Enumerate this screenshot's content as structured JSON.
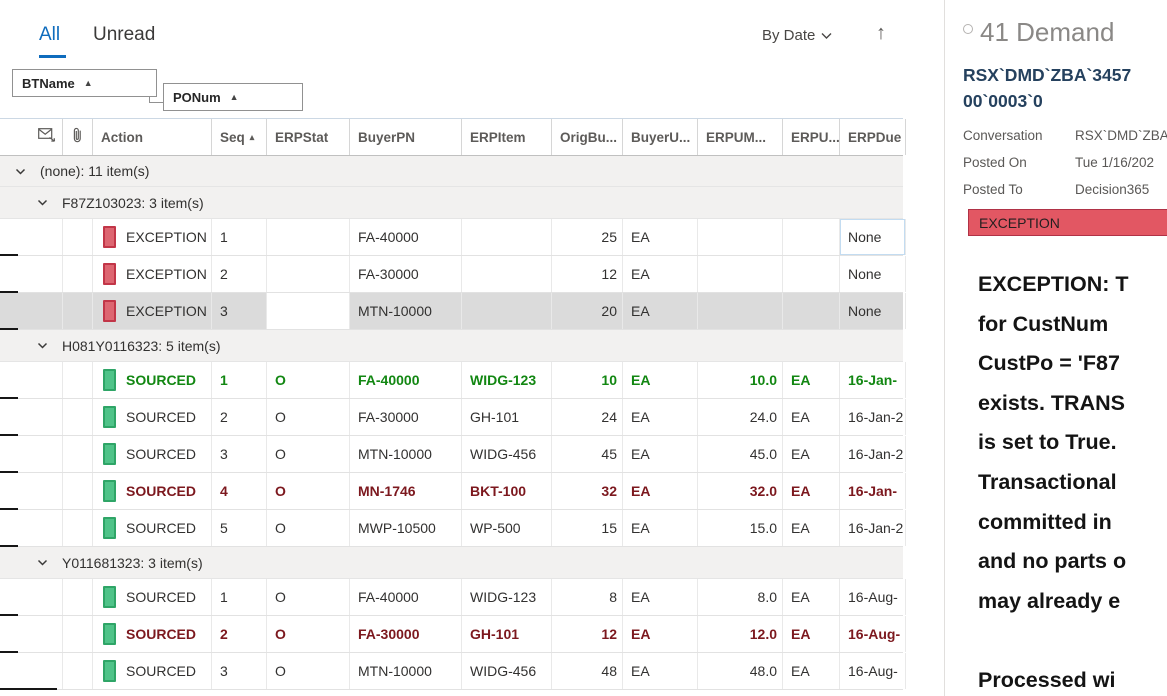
{
  "tabs": {
    "all": "All",
    "unread": "Unread"
  },
  "toolbar": {
    "sort_label": "By Date"
  },
  "group_by": {
    "first": "BTName",
    "second": "PONum"
  },
  "columns": [
    {
      "key": "mail",
      "label": "",
      "icon": "mail-read-icon"
    },
    {
      "key": "clip",
      "label": "",
      "icon": "paperclip-icon"
    },
    {
      "key": "action",
      "label": "Action"
    },
    {
      "key": "seq",
      "label": "Seq",
      "sort": "asc"
    },
    {
      "key": "erpstat",
      "label": "ERPStat"
    },
    {
      "key": "buyerpn",
      "label": "BuyerPN"
    },
    {
      "key": "erpitem",
      "label": "ERPItem"
    },
    {
      "key": "origbu",
      "label": "OrigBu..."
    },
    {
      "key": "buyeru",
      "label": "BuyerU..."
    },
    {
      "key": "erpum",
      "label": "ERPUM..."
    },
    {
      "key": "erpu",
      "label": "ERPU..."
    },
    {
      "key": "erpdue",
      "label": "ERPDue"
    }
  ],
  "groups": [
    {
      "label": "(none): 11 item(s)",
      "level": 0,
      "rows": []
    },
    {
      "label": "F87Z103023: 3 item(s)",
      "level": 1,
      "rows": [
        {
          "badge": "red",
          "style": "normal",
          "focus_cell": "erpdue",
          "values": {
            "action": "EXCEPTION",
            "seq": "1",
            "erpstat": "",
            "buyerpn": "FA-40000",
            "erpitem": "",
            "origbu": "25",
            "buyeru": "EA",
            "erpum": "",
            "erpu": "",
            "erpdue": "None"
          }
        },
        {
          "badge": "red",
          "style": "normal",
          "values": {
            "action": "EXCEPTION",
            "seq": "2",
            "erpstat": "",
            "buyerpn": "FA-30000",
            "erpitem": "",
            "origbu": "12",
            "buyeru": "EA",
            "erpum": "",
            "erpu": "",
            "erpdue": "None"
          }
        },
        {
          "badge": "red",
          "style": "normal",
          "selected": true,
          "white_cell": "erpstat",
          "values": {
            "action": "EXCEPTION",
            "seq": "3",
            "erpstat": "",
            "buyerpn": "MTN-10000",
            "erpitem": "",
            "origbu": "20",
            "buyeru": "EA",
            "erpum": "",
            "erpu": "",
            "erpdue": "None"
          }
        }
      ]
    },
    {
      "label": "H081Y0116323: 5 item(s)",
      "level": 1,
      "rows": [
        {
          "badge": "green",
          "style": "unread-green",
          "values": {
            "action": "SOURCED",
            "seq": "1",
            "erpstat": "O",
            "buyerpn": "FA-40000",
            "erpitem": "WIDG-123",
            "origbu": "10",
            "buyeru": "EA",
            "erpum": "10.0",
            "erpu": "EA",
            "erpdue": "16-Jan-"
          }
        },
        {
          "badge": "green",
          "style": "normal",
          "values": {
            "action": "SOURCED",
            "seq": "2",
            "erpstat": "O",
            "buyerpn": "FA-30000",
            "erpitem": "GH-101",
            "origbu": "24",
            "buyeru": "EA",
            "erpum": "24.0",
            "erpu": "EA",
            "erpdue": "16-Jan-2"
          }
        },
        {
          "badge": "green",
          "style": "normal",
          "values": {
            "action": "SOURCED",
            "seq": "3",
            "erpstat": "O",
            "buyerpn": "MTN-10000",
            "erpitem": "WIDG-456",
            "origbu": "45",
            "buyeru": "EA",
            "erpum": "45.0",
            "erpu": "EA",
            "erpdue": "16-Jan-2"
          }
        },
        {
          "badge": "green",
          "style": "unread-maroon",
          "values": {
            "action": "SOURCED",
            "seq": "4",
            "erpstat": "O",
            "buyerpn": "MN-1746",
            "erpitem": "BKT-100",
            "origbu": "32",
            "buyeru": "EA",
            "erpum": "32.0",
            "erpu": "EA",
            "erpdue": "16-Jan-"
          }
        },
        {
          "badge": "green",
          "style": "normal",
          "values": {
            "action": "SOURCED",
            "seq": "5",
            "erpstat": "O",
            "buyerpn": "MWP-10500",
            "erpitem": "WP-500",
            "origbu": "15",
            "buyeru": "EA",
            "erpum": "15.0",
            "erpu": "EA",
            "erpdue": "16-Jan-2"
          }
        }
      ]
    },
    {
      "label": "Y011681323: 3 item(s)",
      "level": 1,
      "rows": [
        {
          "badge": "green",
          "style": "normal",
          "values": {
            "action": "SOURCED",
            "seq": "1",
            "erpstat": "O",
            "buyerpn": "FA-40000",
            "erpitem": "WIDG-123",
            "origbu": "8",
            "buyeru": "EA",
            "erpum": "8.0",
            "erpu": "EA",
            "erpdue": "16-Aug-"
          }
        },
        {
          "badge": "green",
          "style": "unread-maroon",
          "values": {
            "action": "SOURCED",
            "seq": "2",
            "erpstat": "O",
            "buyerpn": "FA-30000",
            "erpitem": "GH-101",
            "origbu": "12",
            "buyeru": "EA",
            "erpum": "12.0",
            "erpu": "EA",
            "erpdue": "16-Aug-"
          }
        },
        {
          "badge": "green",
          "style": "normal",
          "wide_tick": true,
          "values": {
            "action": "SOURCED",
            "seq": "3",
            "erpstat": "O",
            "buyerpn": "MTN-10000",
            "erpitem": "WIDG-456",
            "origbu": "48",
            "buyeru": "EA",
            "erpum": "48.0",
            "erpu": "EA",
            "erpdue": "16-Aug-"
          }
        }
      ]
    }
  ],
  "detail": {
    "type_label": "41 Demand",
    "subject_line1": "RSX`DMD`ZBA`3457",
    "subject_line2": "00`0003`0",
    "fields": [
      {
        "label": "Conversation",
        "value": "RSX`DMD`ZBA"
      },
      {
        "label": "Posted On",
        "value": "Tue 1/16/202"
      },
      {
        "label": "Posted To",
        "value": "Decision365"
      }
    ],
    "status_banner": "EXCEPTION",
    "body_lines": [
      "EXCEPTION: T",
      "for CustNum",
      "CustPo = 'F87",
      "exists. TRANS",
      "is set to True.",
      "Transactional",
      "committed in",
      "and no parts o",
      "may already e",
      "",
      "Processed wi"
    ]
  },
  "colors": {
    "accent_blue": "#0f6cbd",
    "exception_badge": "#c23648",
    "sourced_badge": "#2fa567",
    "unread_green_text": "#128712",
    "unread_maroon_text": "#7c181e",
    "banner_background": "#e25763"
  }
}
